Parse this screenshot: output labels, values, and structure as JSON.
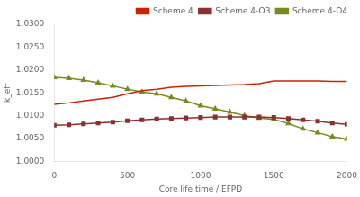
{
  "chart_data": {
    "type": "line",
    "xlabel": "Core life time / EFPD",
    "ylabel": "k_eff",
    "xlim": [
      0,
      2000
    ],
    "ylim": [
      1.0,
      1.03
    ],
    "xticks": [
      0,
      500,
      1000,
      1500,
      2000
    ],
    "yticks": [
      {
        "value": 1.0,
        "label": "1.0000"
      },
      {
        "value": 1.005,
        "label": "1.0050"
      },
      {
        "value": 1.01,
        "label": "1.0100"
      },
      {
        "value": 1.015,
        "label": "1.0150"
      },
      {
        "value": 1.02,
        "label": "1.0200"
      },
      {
        "value": 1.025,
        "label": "1.0250"
      },
      {
        "value": 1.03,
        "label": "1.0300"
      }
    ],
    "grid": false,
    "legend": "upper right",
    "series": [
      {
        "name": "Scheme 4",
        "color": "#cc2200",
        "marker": "none",
        "x": [
          0,
          100,
          200,
          300,
          400,
          500,
          600,
          700,
          800,
          900,
          1000,
          1100,
          1200,
          1300,
          1400,
          1500,
          1600,
          1700,
          1800,
          1900,
          2000
        ],
        "values": [
          1.0125,
          1.0128,
          1.0132,
          1.0136,
          1.014,
          1.0148,
          1.0155,
          1.0158,
          1.0162,
          1.0164,
          1.0165,
          1.0166,
          1.0167,
          1.0168,
          1.017,
          1.0176,
          1.0176,
          1.0176,
          1.0176,
          1.0175,
          1.0175
        ]
      },
      {
        "name": "Scheme 4-O3",
        "color": "#8b3030",
        "marker": "square",
        "x": [
          0,
          100,
          200,
          300,
          400,
          500,
          600,
          700,
          800,
          900,
          1000,
          1100,
          1200,
          1300,
          1400,
          1500,
          1600,
          1700,
          1800,
          1900,
          2000
        ],
        "values": [
          1.0079,
          1.008,
          1.0082,
          1.0084,
          1.0086,
          1.0089,
          1.0091,
          1.0093,
          1.0094,
          1.0095,
          1.0096,
          1.0097,
          1.0097,
          1.0097,
          1.0097,
          1.0096,
          1.0094,
          1.0091,
          1.0088,
          1.0084,
          1.0081
        ]
      },
      {
        "name": "Scheme 4-O4",
        "color": "#778b22",
        "marker": "triangle",
        "x": [
          0,
          100,
          200,
          300,
          400,
          500,
          600,
          700,
          800,
          900,
          1000,
          1100,
          1200,
          1300,
          1400,
          1500,
          1600,
          1700,
          1800,
          1900,
          2000
        ],
        "values": [
          1.0184,
          1.0182,
          1.0178,
          1.0172,
          1.0165,
          1.0158,
          1.0152,
          1.0148,
          1.014,
          1.0132,
          1.0122,
          1.0115,
          1.0108,
          1.01,
          1.0095,
          1.0092,
          1.0083,
          1.0071,
          1.0063,
          1.0054,
          1.0049
        ]
      }
    ]
  }
}
